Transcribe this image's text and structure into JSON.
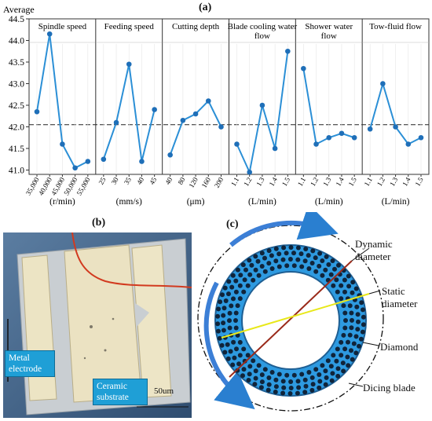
{
  "panel_labels": {
    "a": "(a)",
    "b": "(b)",
    "c": "(c)"
  },
  "chart_data": {
    "type": "line",
    "ylabel": "Average",
    "ylim": [
      40.9,
      44.5
    ],
    "yticks": [
      41.0,
      41.5,
      42.0,
      42.5,
      43.0,
      43.5,
      44.0,
      44.5
    ],
    "reference_line": 42.05,
    "series_color": "#2b8fd6",
    "panels": [
      {
        "title": [
          "Spindle speed"
        ],
        "unit": "(r/min)",
        "categories": [
          "35,000",
          "40,000",
          "45,000",
          "50,000",
          "55,000"
        ],
        "values": [
          42.35,
          44.15,
          41.6,
          41.05,
          41.2
        ]
      },
      {
        "title": [
          "Feeding speed"
        ],
        "unit": "(mm/s)",
        "categories": [
          "25",
          "30",
          "35",
          "40",
          "45"
        ],
        "values": [
          41.25,
          42.1,
          43.45,
          41.2,
          42.4
        ]
      },
      {
        "title": [
          "Cutting depth"
        ],
        "unit": "(μm)",
        "categories": [
          "40",
          "80",
          "120",
          "160",
          "200"
        ],
        "values": [
          41.35,
          42.15,
          42.3,
          42.6,
          42.0
        ]
      },
      {
        "title": [
          "Blade cooling water",
          "flow"
        ],
        "unit": "(L/min)",
        "categories": [
          "1.1",
          "1.2",
          "1.3",
          "1.4",
          "1.5"
        ],
        "values": [
          41.6,
          40.95,
          42.5,
          41.5,
          43.75
        ]
      },
      {
        "title": [
          "Shower water",
          "flow"
        ],
        "unit": "(L/min)",
        "categories": [
          "1.1",
          "1.2",
          "1.3",
          "1.4",
          "1.5"
        ],
        "values": [
          43.35,
          41.6,
          41.75,
          41.85,
          41.75
        ]
      },
      {
        "title": [
          "Tow-fluid flow"
        ],
        "unit": "(L/min)",
        "categories": [
          "1.1",
          "1.2",
          "1.3",
          "1.4",
          "1.5"
        ],
        "values": [
          41.95,
          43.0,
          42.0,
          41.6,
          41.75
        ]
      }
    ]
  },
  "photo_b": {
    "metal_label": [
      "Metal",
      "electrode"
    ],
    "ceramic_label": [
      "Ceramic",
      "substrate"
    ],
    "scale_label": "50um"
  },
  "diagram_c": {
    "labels": {
      "dynamic": [
        "Dynamic",
        "diameter"
      ],
      "static": [
        "Static",
        "diameter"
      ],
      "diamond": [
        "Diamond"
      ],
      "blade": [
        "Dicing blade"
      ]
    }
  }
}
